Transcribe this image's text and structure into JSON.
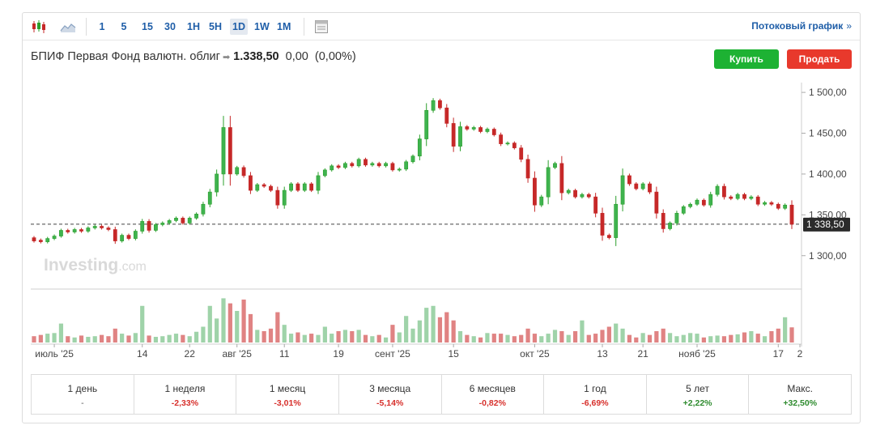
{
  "toolbar": {
    "timeframes": [
      "1",
      "5",
      "15",
      "30",
      "1H",
      "5H",
      "1D",
      "1W",
      "1M"
    ],
    "active": "1D",
    "stream_label": "Потоковый график",
    "stream_arrow": "»"
  },
  "instrument": {
    "name": "БПИФ Первая Фонд валютн. облиг",
    "arrow": "➡",
    "price": "1.338,50",
    "change": "0,00",
    "change_pct": "(0,00%)"
  },
  "actions": {
    "buy": "Купить",
    "sell": "Продать"
  },
  "watermark": {
    "brand": "Investing",
    "suffix": ".com"
  },
  "colors": {
    "up": "#2ca02c",
    "down": "#c62828",
    "up_volume": "#9fd3a9",
    "down_volume": "#e08383",
    "link": "#1f5ea8",
    "positive": "#2e8b2e",
    "negative": "#d7302c"
  },
  "chart_data": {
    "type": "candlestick",
    "ylim": [
      1270,
      1512
    ],
    "y_ticks": [
      "1 500,00",
      "1 450,00",
      "1 400,00",
      "1 350,00",
      "1 300,00"
    ],
    "y_tick_values": [
      1500,
      1450,
      1400,
      1350,
      1300
    ],
    "last_price_label": "1 338,50",
    "last_price": 1338.5,
    "x_labels": [
      "июль '25",
      "14",
      "22",
      "авг '25",
      "11",
      "19",
      "сент '25",
      "15",
      "окт '25",
      "13",
      "21",
      "нояб '25",
      "17",
      "2"
    ],
    "x_label_index": [
      3,
      16,
      23,
      30,
      37,
      45,
      53,
      62,
      74,
      84,
      90,
      98,
      110,
      115
    ],
    "candles": [
      {
        "o": 1322,
        "c": 1318,
        "v": 10
      },
      {
        "o": 1319,
        "c": 1317,
        "v": 12
      },
      {
        "o": 1317,
        "c": 1321,
        "v": 14
      },
      {
        "o": 1321,
        "c": 1324,
        "v": 15
      },
      {
        "o": 1324,
        "c": 1331,
        "v": 30
      },
      {
        "o": 1331,
        "c": 1329,
        "v": 10
      },
      {
        "o": 1329,
        "c": 1332,
        "v": 8
      },
      {
        "o": 1332,
        "c": 1330,
        "v": 11
      },
      {
        "o": 1330,
        "c": 1334,
        "v": 9
      },
      {
        "o": 1334,
        "c": 1336,
        "v": 10
      },
      {
        "o": 1336,
        "c": 1334,
        "v": 12
      },
      {
        "o": 1334,
        "c": 1332,
        "v": 10
      },
      {
        "o": 1332,
        "c": 1318,
        "v": 22
      },
      {
        "o": 1318,
        "c": 1325,
        "v": 14
      },
      {
        "o": 1325,
        "c": 1321,
        "v": 11
      },
      {
        "o": 1321,
        "c": 1330,
        "v": 15
      },
      {
        "o": 1330,
        "c": 1342,
        "v": 58
      },
      {
        "o": 1342,
        "c": 1331,
        "v": 11
      },
      {
        "o": 1331,
        "c": 1338,
        "v": 9
      },
      {
        "o": 1338,
        "c": 1340,
        "v": 10
      },
      {
        "o": 1340,
        "c": 1343,
        "v": 12
      },
      {
        "o": 1343,
        "c": 1346,
        "v": 14
      },
      {
        "o": 1346,
        "c": 1340,
        "v": 12
      },
      {
        "o": 1340,
        "c": 1346,
        "v": 10
      },
      {
        "o": 1346,
        "c": 1351,
        "v": 17
      },
      {
        "o": 1351,
        "c": 1363,
        "v": 25
      },
      {
        "o": 1363,
        "c": 1378,
        "v": 58
      },
      {
        "o": 1378,
        "c": 1400,
        "v": 38
      },
      {
        "o": 1400,
        "c": 1457,
        "v": 70
      },
      {
        "o": 1457,
        "c": 1400,
        "v": 62
      },
      {
        "o": 1400,
        "c": 1408,
        "v": 50
      },
      {
        "o": 1408,
        "c": 1398,
        "v": 68
      },
      {
        "o": 1398,
        "c": 1380,
        "v": 45
      },
      {
        "o": 1380,
        "c": 1387,
        "v": 20
      },
      {
        "o": 1387,
        "c": 1385,
        "v": 18
      },
      {
        "o": 1385,
        "c": 1380,
        "v": 22
      },
      {
        "o": 1380,
        "c": 1362,
        "v": 48
      },
      {
        "o": 1362,
        "c": 1380,
        "v": 28
      },
      {
        "o": 1380,
        "c": 1388,
        "v": 14
      },
      {
        "o": 1388,
        "c": 1380,
        "v": 16
      },
      {
        "o": 1380,
        "c": 1388,
        "v": 12
      },
      {
        "o": 1388,
        "c": 1380,
        "v": 14
      },
      {
        "o": 1380,
        "c": 1398,
        "v": 12
      },
      {
        "o": 1398,
        "c": 1405,
        "v": 25
      },
      {
        "o": 1405,
        "c": 1410,
        "v": 14
      },
      {
        "o": 1410,
        "c": 1408,
        "v": 18
      },
      {
        "o": 1408,
        "c": 1413,
        "v": 20
      },
      {
        "o": 1413,
        "c": 1410,
        "v": 18
      },
      {
        "o": 1410,
        "c": 1418,
        "v": 20
      },
      {
        "o": 1418,
        "c": 1411,
        "v": 12
      },
      {
        "o": 1411,
        "c": 1413,
        "v": 10
      },
      {
        "o": 1413,
        "c": 1410,
        "v": 12
      },
      {
        "o": 1410,
        "c": 1413,
        "v": 8
      },
      {
        "o": 1413,
        "c": 1405,
        "v": 28
      },
      {
        "o": 1405,
        "c": 1406,
        "v": 16
      },
      {
        "o": 1406,
        "c": 1415,
        "v": 42
      },
      {
        "o": 1415,
        "c": 1422,
        "v": 22
      },
      {
        "o": 1422,
        "c": 1443,
        "v": 35
      },
      {
        "o": 1443,
        "c": 1478,
        "v": 55
      },
      {
        "o": 1478,
        "c": 1490,
        "v": 58
      },
      {
        "o": 1490,
        "c": 1481,
        "v": 40
      },
      {
        "o": 1481,
        "c": 1462,
        "v": 48
      },
      {
        "o": 1462,
        "c": 1434,
        "v": 35
      },
      {
        "o": 1434,
        "c": 1458,
        "v": 18
      },
      {
        "o": 1458,
        "c": 1455,
        "v": 12
      },
      {
        "o": 1455,
        "c": 1457,
        "v": 10
      },
      {
        "o": 1457,
        "c": 1452,
        "v": 8
      },
      {
        "o": 1452,
        "c": 1455,
        "v": 15
      },
      {
        "o": 1455,
        "c": 1448,
        "v": 14
      },
      {
        "o": 1448,
        "c": 1437,
        "v": 14
      },
      {
        "o": 1437,
        "c": 1438,
        "v": 12
      },
      {
        "o": 1438,
        "c": 1432,
        "v": 10
      },
      {
        "o": 1432,
        "c": 1418,
        "v": 12
      },
      {
        "o": 1418,
        "c": 1395,
        "v": 22
      },
      {
        "o": 1395,
        "c": 1362,
        "v": 14
      },
      {
        "o": 1362,
        "c": 1372,
        "v": 10
      },
      {
        "o": 1372,
        "c": 1408,
        "v": 14
      },
      {
        "o": 1408,
        "c": 1413,
        "v": 20
      },
      {
        "o": 1413,
        "c": 1377,
        "v": 18
      },
      {
        "o": 1377,
        "c": 1380,
        "v": 12
      },
      {
        "o": 1380,
        "c": 1372,
        "v": 18
      },
      {
        "o": 1372,
        "c": 1375,
        "v": 35
      },
      {
        "o": 1375,
        "c": 1372,
        "v": 12
      },
      {
        "o": 1372,
        "c": 1352,
        "v": 14
      },
      {
        "o": 1352,
        "c": 1325,
        "v": 20
      },
      {
        "o": 1325,
        "c": 1322,
        "v": 25
      },
      {
        "o": 1322,
        "c": 1363,
        "v": 30
      },
      {
        "o": 1363,
        "c": 1398,
        "v": 22
      },
      {
        "o": 1398,
        "c": 1388,
        "v": 12
      },
      {
        "o": 1388,
        "c": 1382,
        "v": 8
      },
      {
        "o": 1382,
        "c": 1388,
        "v": 15
      },
      {
        "o": 1388,
        "c": 1378,
        "v": 12
      },
      {
        "o": 1378,
        "c": 1352,
        "v": 18
      },
      {
        "o": 1352,
        "c": 1333,
        "v": 22
      },
      {
        "o": 1333,
        "c": 1340,
        "v": 15
      },
      {
        "o": 1340,
        "c": 1352,
        "v": 10
      },
      {
        "o": 1352,
        "c": 1360,
        "v": 12
      },
      {
        "o": 1360,
        "c": 1363,
        "v": 15
      },
      {
        "o": 1363,
        "c": 1368,
        "v": 14
      },
      {
        "o": 1368,
        "c": 1362,
        "v": 8
      },
      {
        "o": 1362,
        "c": 1375,
        "v": 10
      },
      {
        "o": 1375,
        "c": 1385,
        "v": 11
      },
      {
        "o": 1385,
        "c": 1372,
        "v": 10
      },
      {
        "o": 1372,
        "c": 1370,
        "v": 12
      },
      {
        "o": 1370,
        "c": 1375,
        "v": 13
      },
      {
        "o": 1375,
        "c": 1370,
        "v": 16
      },
      {
        "o": 1370,
        "c": 1372,
        "v": 18
      },
      {
        "o": 1372,
        "c": 1363,
        "v": 14
      },
      {
        "o": 1363,
        "c": 1365,
        "v": 10
      },
      {
        "o": 1365,
        "c": 1363,
        "v": 18
      },
      {
        "o": 1363,
        "c": 1358,
        "v": 22
      },
      {
        "o": 1358,
        "c": 1362,
        "v": 40
      },
      {
        "o": 1362,
        "c": 1338.5,
        "v": 24
      }
    ]
  },
  "performance": [
    {
      "label": "1 день",
      "value": "-",
      "sign": "neutral"
    },
    {
      "label": "1 неделя",
      "value": "-2,33%",
      "sign": "negative"
    },
    {
      "label": "1 месяц",
      "value": "-3,01%",
      "sign": "negative"
    },
    {
      "label": "3 месяца",
      "value": "-5,14%",
      "sign": "negative"
    },
    {
      "label": "6 месяцев",
      "value": "-0,82%",
      "sign": "negative"
    },
    {
      "label": "1 год",
      "value": "-6,69%",
      "sign": "negative"
    },
    {
      "label": "5 лет",
      "value": "+2,22%",
      "sign": "positive"
    },
    {
      "label": "Макс.",
      "value": "+32,50%",
      "sign": "positive"
    }
  ]
}
